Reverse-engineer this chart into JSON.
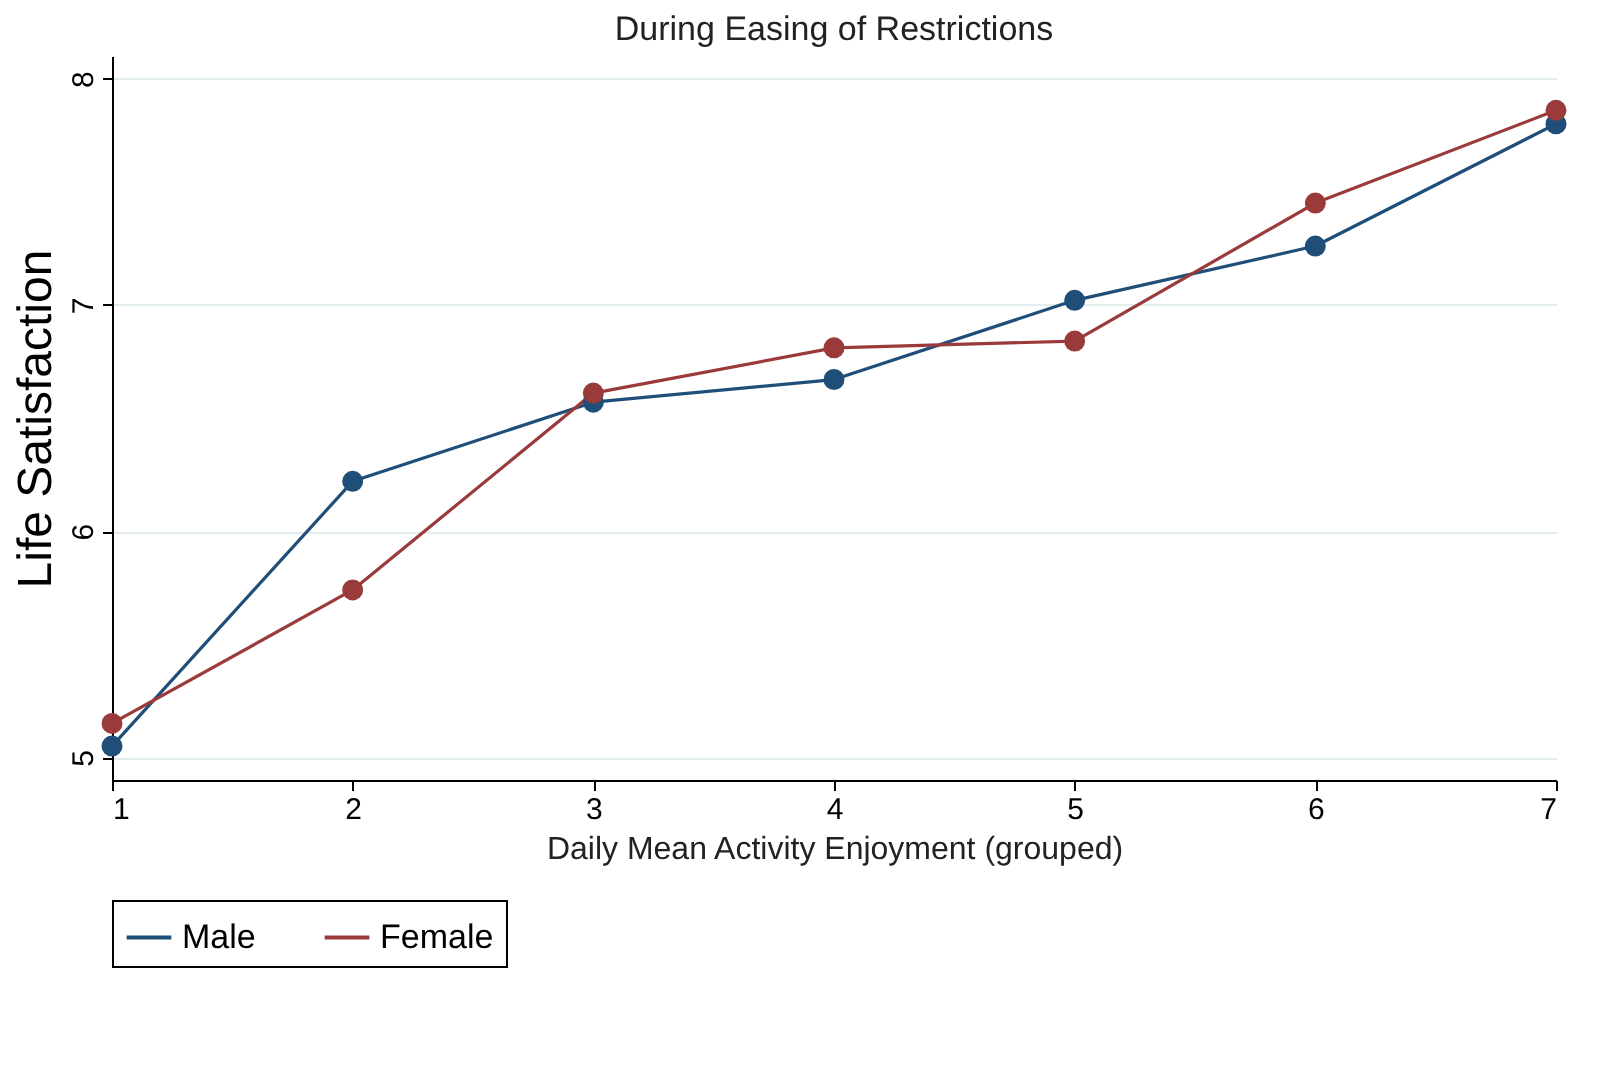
{
  "chart_data": {
    "type": "line",
    "title": "During Easing of Restrictions",
    "xlabel": "Daily Mean Activity Enjoyment (grouped)",
    "ylabel": "Life Satisfaction",
    "x": [
      1,
      2,
      3,
      4,
      5,
      6,
      7
    ],
    "series": [
      {
        "name": "Male",
        "color": "#1f4e79",
        "values": [
          5.05,
          6.22,
          6.57,
          6.67,
          7.02,
          7.26,
          7.8
        ]
      },
      {
        "name": "Female",
        "color": "#9b3a3a",
        "values": [
          5.15,
          5.74,
          6.61,
          6.81,
          6.84,
          7.45,
          7.86
        ]
      }
    ],
    "xlim": [
      1,
      7
    ],
    "xticks": [
      1,
      2,
      3,
      4,
      5,
      6,
      7
    ],
    "ylim": [
      4.9,
      8.1
    ],
    "yticks": [
      5,
      6,
      7,
      8
    ],
    "grid": "y",
    "legend": "bottom",
    "marker": "circle",
    "line_style": "solid"
  }
}
